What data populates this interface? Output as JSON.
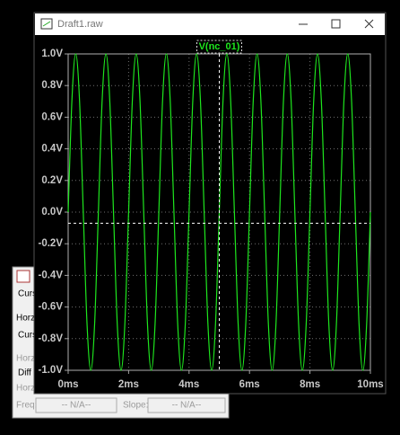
{
  "window": {
    "title": "Draft1.raw"
  },
  "chart_data": {
    "type": "line",
    "x": [
      0,
      0.125,
      0.25,
      0.375,
      0.5,
      0.625,
      0.75,
      0.875,
      1,
      1.125,
      1.25,
      1.375,
      1.5,
      1.625,
      1.75,
      1.875,
      2,
      2.125,
      2.25,
      2.375,
      2.5,
      2.625,
      2.75,
      2.875,
      3,
      3.125,
      3.25,
      3.375,
      3.5,
      3.625,
      3.75,
      3.875,
      4,
      4.125,
      4.25,
      4.375,
      4.5,
      4.625,
      4.75,
      4.875,
      5,
      5.125,
      5.25,
      5.375,
      5.5,
      5.625,
      5.75,
      5.875,
      6,
      6.125,
      6.25,
      6.375,
      6.5,
      6.625,
      6.75,
      6.875,
      7,
      7.125,
      7.25,
      7.375,
      7.5,
      7.625,
      7.75,
      7.875,
      8,
      8.125,
      8.25,
      8.375,
      8.5,
      8.625,
      8.75,
      8.875,
      9,
      9.125,
      9.25,
      9.375,
      9.5,
      9.625,
      9.75,
      9.875,
      10
    ],
    "series": [
      {
        "name": "V(nc_01)",
        "color": "#1ee61e",
        "values": [
          0,
          0.71,
          1,
          0.71,
          0,
          -0.71,
          -1,
          -0.71,
          0,
          0.71,
          1,
          0.71,
          0,
          -0.71,
          -1,
          -0.71,
          0,
          0.71,
          1,
          0.71,
          0,
          -0.71,
          -1,
          -0.71,
          0,
          0.71,
          1,
          0.71,
          0,
          -0.71,
          -1,
          -0.71,
          0,
          0.71,
          1,
          0.71,
          0,
          -0.71,
          -1,
          -0.71,
          0,
          0.71,
          1,
          0.71,
          0,
          -0.71,
          -1,
          -0.71,
          0,
          0.71,
          1,
          0.71,
          0,
          -0.71,
          -1,
          -0.71,
          0,
          0.71,
          1,
          0.71,
          0,
          -0.71,
          -1,
          -0.71,
          0,
          0.71,
          1,
          0.71,
          0,
          -0.71,
          -1,
          -0.71,
          0,
          0.71,
          1,
          0.71,
          0,
          -0.71,
          -1,
          -0.71,
          0
        ]
      }
    ],
    "xlim": [
      0,
      10
    ],
    "xticks": [
      {
        "value": 0,
        "label": "0ms"
      },
      {
        "value": 2,
        "label": "2ms"
      },
      {
        "value": 4,
        "label": "4ms"
      },
      {
        "value": 6,
        "label": "6ms"
      },
      {
        "value": 8,
        "label": "8ms"
      },
      {
        "value": 10,
        "label": "10ms"
      }
    ],
    "ylim": [
      -1,
      1
    ],
    "yticks": [
      {
        "value": 1,
        "label": "1.0V"
      },
      {
        "value": 0.8,
        "label": "0.8V"
      },
      {
        "value": 0.6,
        "label": "0.6V"
      },
      {
        "value": 0.4,
        "label": "0.4V"
      },
      {
        "value": 0.2,
        "label": "0.2V"
      },
      {
        "value": 0,
        "label": "0.0V"
      },
      {
        "value": -0.2,
        "label": "-0.2V"
      },
      {
        "value": -0.4,
        "label": "-0.4V"
      },
      {
        "value": -0.6,
        "label": "-0.6V"
      },
      {
        "value": -0.8,
        "label": "-0.8V"
      },
      {
        "value": -1,
        "label": "-1.0V"
      }
    ],
    "grid": true,
    "cursor": {
      "x": 5,
      "y": -0.07
    }
  },
  "cursor_dialog": {
    "rows": [
      "Curs",
      "Horz:",
      "Curs",
      "Horz",
      "Diff (",
      "Horz:"
    ],
    "freq_label": "Freq:",
    "freq_value": "-- N/A--",
    "slope_label": "Slope:",
    "slope_value": "-- N/A--"
  }
}
